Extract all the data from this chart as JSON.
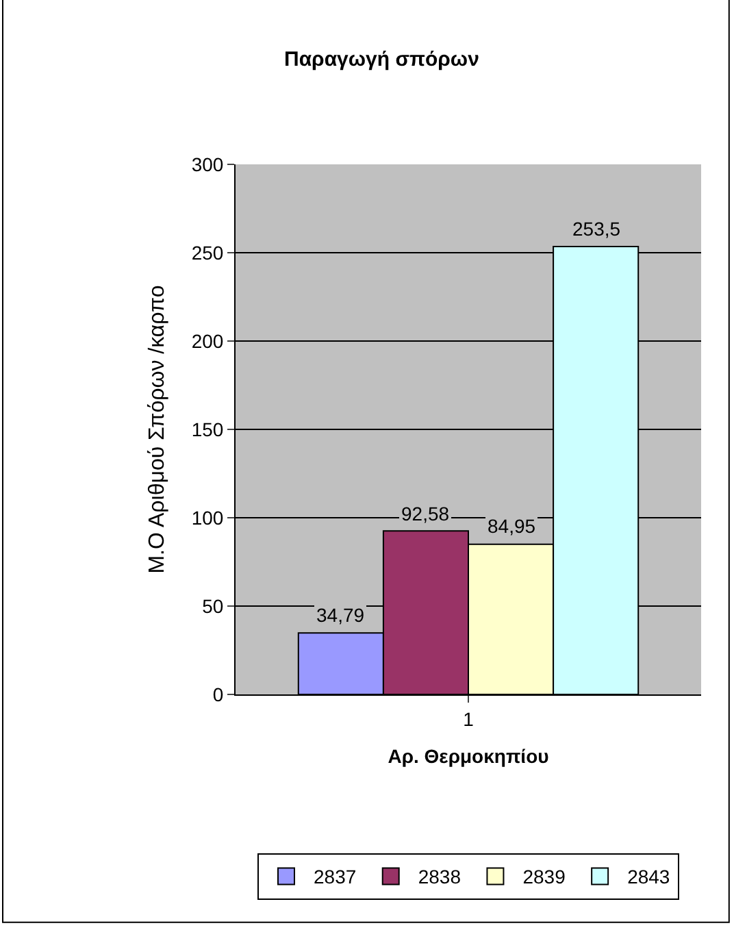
{
  "chart_data": {
    "type": "bar",
    "title": "Παραγωγή σπόρων",
    "xlabel": "Αρ. Θερμοκηπίου",
    "ylabel": "Μ.Ο Αριθμού Σπόρων /καρπο",
    "categories": [
      "1"
    ],
    "series": [
      {
        "name": "2837",
        "color": "#9999ff",
        "values": [
          34.79
        ],
        "value_labels": [
          "34,79"
        ]
      },
      {
        "name": "2838",
        "color": "#993366",
        "values": [
          92.58
        ],
        "value_labels": [
          "92,58"
        ]
      },
      {
        "name": "2839",
        "color": "#ffffcc",
        "values": [
          84.95
        ],
        "value_labels": [
          "84,95"
        ]
      },
      {
        "name": "2843",
        "color": "#ccffff",
        "values": [
          253.5
        ],
        "value_labels": [
          "253,5"
        ]
      }
    ],
    "ylim": [
      0,
      300
    ],
    "yticks": [
      0,
      50,
      100,
      150,
      200,
      250,
      300
    ],
    "grid": "y",
    "legend": "bottom"
  }
}
